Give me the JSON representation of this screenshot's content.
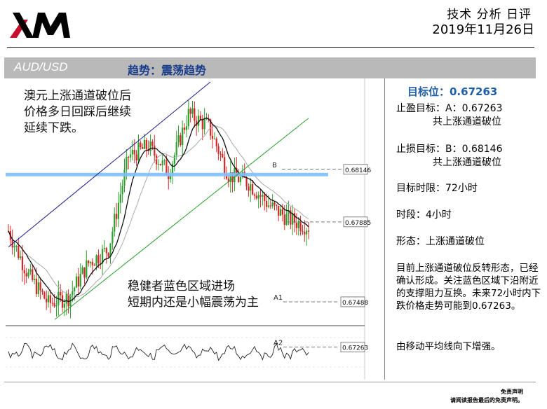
{
  "brand": {
    "logo_text": "XM"
  },
  "report": {
    "title": "技术 分析 日评",
    "date": "2019年11月26日"
  },
  "header": {
    "pair": "AUD/USD",
    "trend": "趋势：震荡趋势"
  },
  "chart_data": {
    "type": "line",
    "title": "",
    "series": [
      {
        "name": "",
        "x": [
          0,
          10,
          20,
          30,
          40,
          50,
          60,
          70,
          80,
          90,
          100,
          110,
          120,
          130,
          140,
          150
        ],
        "values": [
          0.6784,
          0.6762,
          0.6748,
          0.6751,
          0.6768,
          0.6775,
          0.6821,
          0.6826,
          0.6813,
          0.6842,
          0.6836,
          0.6812,
          0.6808,
          0.6797,
          0.679,
          0.6786
        ]
      }
    ],
    "levels": [
      {
        "label": "B",
        "value": 0.68146,
        "text": "0.68146"
      },
      {
        "label": "",
        "value": 0.67885,
        "text": "0.67885"
      },
      {
        "label": "A1",
        "value": 0.67488,
        "text": "0.67488"
      },
      {
        "label": "A2",
        "value": 0.67263,
        "text": "0.67263"
      }
    ],
    "support_zone": 0.6812,
    "channel": "rising channel broken",
    "grid": false
  },
  "annotations": {
    "top_left": [
      "澳元上涨通道破位后",
      "价格多日回踩后继续",
      "延续下跌。"
    ],
    "bottom": [
      "稳健者蓝色区域进场",
      "短期内还是小幅震荡为主"
    ]
  },
  "panel": {
    "target_label": "目标位：0.67263",
    "tp_line1": "止盈目标：A：0.67263",
    "tp_line2": "共上涨通道破位",
    "sl_line1": "止损目标：B：0.68146",
    "sl_line2": "共上涨通道破位",
    "timeframe": "目标时限：72小时",
    "period": "时段：4小时",
    "pattern": "形态：上涨通道破位",
    "analysis": "目前上涨通道破位反转形态，已经确认形成。关注蓝色区域下沿附近的支撑阻力互换。未来72小时内下跌价格走势可能到0.67263。",
    "ma_note": "由移动平均线向下增强。"
  },
  "footer": {
    "line1": "免责声明",
    "line2": "请阅读报告最后的免责声明。"
  },
  "colors": {
    "bull": "#2ca02c",
    "bear": "#d62728",
    "zone": "#7fbfff",
    "channel_upper": "#1a1a8c",
    "channel_lower": "#2a9d2a",
    "accent": "#1f5fa8"
  }
}
